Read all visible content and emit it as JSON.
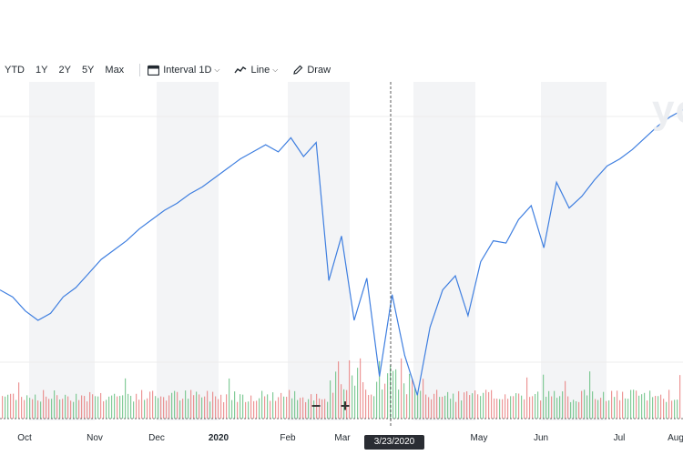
{
  "toolbar": {
    "ranges": [
      "YTD",
      "1Y",
      "2Y",
      "5Y",
      "Max"
    ],
    "interval_label": "Interval",
    "interval_value": "1D",
    "line_label": "Line",
    "draw_label": "Draw"
  },
  "watermark": "yo",
  "zoom": {
    "out": "−",
    "in": "+"
  },
  "crosshair_date": "3/23/2020",
  "colors": {
    "price_line": "#3f7fe0",
    "vol_up": "#4fb66e",
    "vol_down": "#e56969",
    "band": "#f3f4f6",
    "crosshair": "#333"
  },
  "chart_data": {
    "type": "line",
    "x_ticks": [
      "Oct",
      "Nov",
      "Dec",
      "2020",
      "Feb",
      "Mar",
      "May",
      "Jun",
      "Jul",
      "Aug"
    ],
    "price": [
      275,
      272,
      266,
      262,
      265,
      272,
      276,
      282,
      288,
      292,
      296,
      301,
      305,
      309,
      312,
      316,
      319,
      323,
      327,
      331,
      334,
      337,
      334,
      340,
      332,
      338,
      279,
      298,
      262,
      280,
      238,
      273,
      247,
      230,
      259,
      275,
      281,
      264,
      287,
      296,
      295,
      305,
      311,
      293,
      321,
      310,
      315,
      322,
      328,
      331,
      335,
      340,
      345,
      349,
      352
    ],
    "volume_note": "daily volume bars",
    "crosshair_x": "3/23/2020"
  }
}
